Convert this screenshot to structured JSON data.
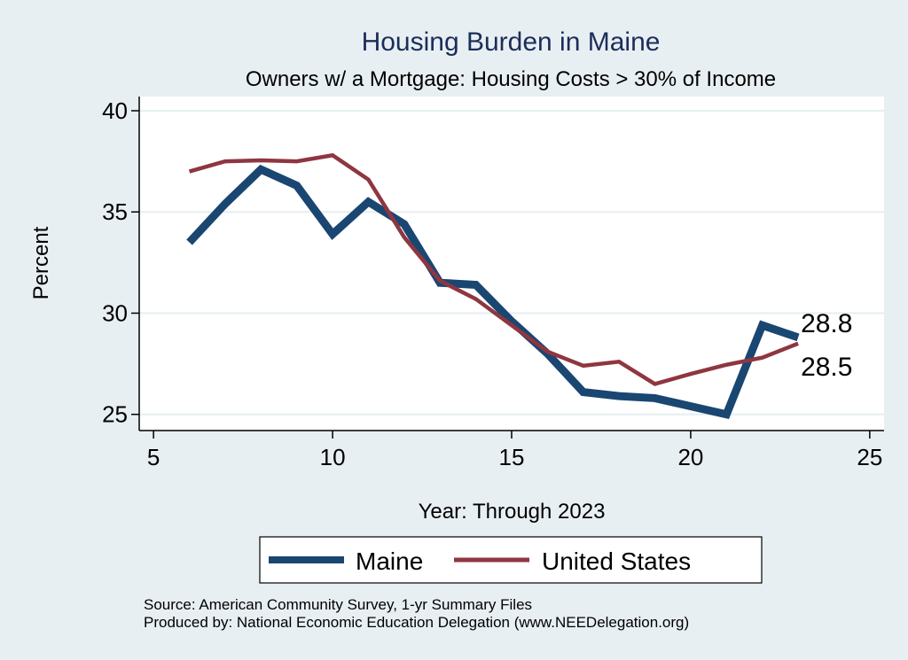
{
  "chart_data": {
    "type": "line",
    "title": "Housing Burden in Maine",
    "subtitle": "Owners w/ a Mortgage: Housing Costs > 30% of Income",
    "xlabel": "Year: Through 2023",
    "ylabel": "Percent",
    "xlim": [
      4.6,
      25.4
    ],
    "ylim": [
      24.2,
      40.7
    ],
    "xticks": [
      5,
      10,
      15,
      20,
      25
    ],
    "yticks": [
      25,
      30,
      35,
      40
    ],
    "grid": "horizontal",
    "x": [
      6,
      7,
      8,
      9,
      10,
      11,
      12,
      13,
      14,
      15,
      16,
      17,
      18,
      19,
      20,
      21,
      22,
      23
    ],
    "series": [
      {
        "name": "Maine",
        "color": "#1a4672",
        "values": [
          33.5,
          35.4,
          37.1,
          36.3,
          33.9,
          35.5,
          34.4,
          31.5,
          31.4,
          29.6,
          28.0,
          26.1,
          25.9,
          25.8,
          25.4,
          25.0,
          29.4,
          28.8
        ],
        "end_label": "28.8"
      },
      {
        "name": "United States",
        "color": "#8f3640",
        "values": [
          37.0,
          37.5,
          37.55,
          37.5,
          37.8,
          36.6,
          33.75,
          31.6,
          30.7,
          29.4,
          28.1,
          27.4,
          27.6,
          26.5,
          27.0,
          27.45,
          27.8,
          28.5
        ],
        "end_label": "28.5"
      }
    ],
    "legend": {
      "placement": "bottom",
      "entries": [
        "Maine",
        "United States"
      ]
    },
    "notes": [
      "Source: American Community Survey, 1-yr Summary Files",
      "Produced by: National Economic Education Delegation (www.NEEDelegation.org)"
    ]
  }
}
